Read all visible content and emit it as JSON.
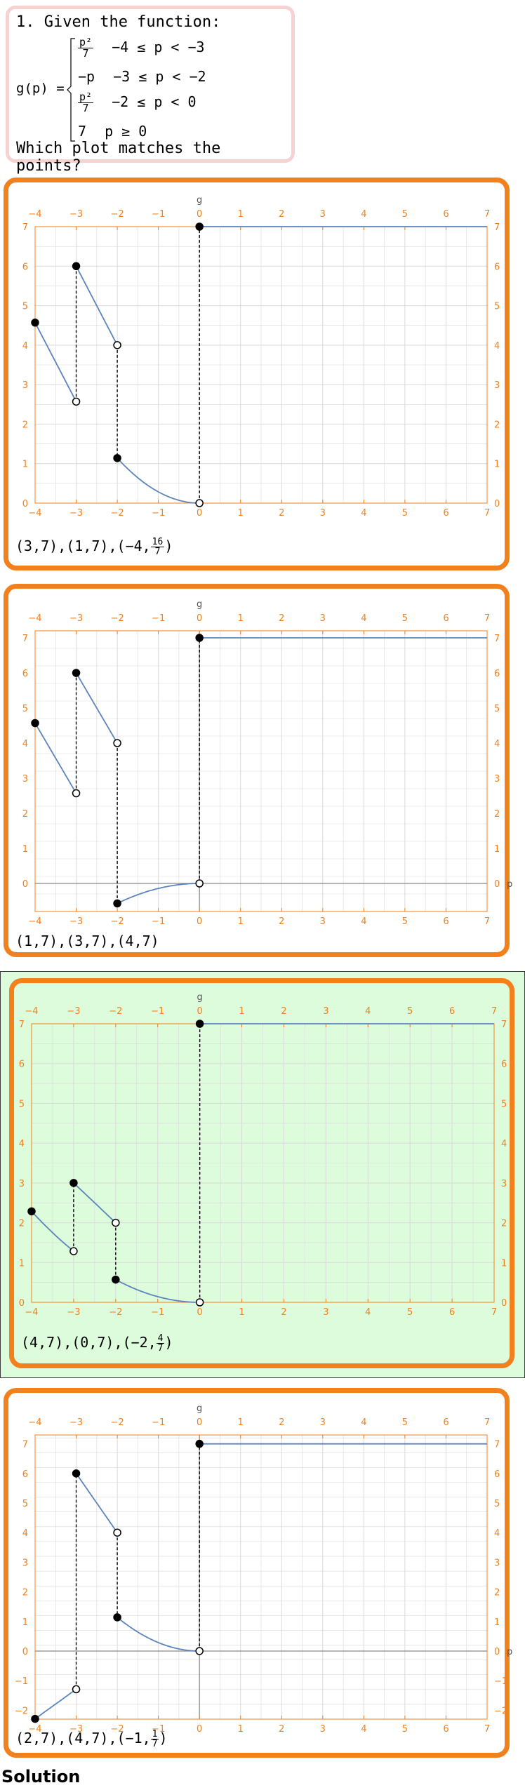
{
  "question": {
    "heading": "1. Given the function:",
    "lhs": "g(p) =",
    "cases": [
      {
        "expr_num": "p²",
        "expr_den": "7",
        "condition": "−4 ≤ p < −3"
      },
      {
        "expr": "−p",
        "condition": "−3 ≤ p < −2"
      },
      {
        "expr_num": "p²",
        "expr_den": "7",
        "condition": "−2 ≤ p < 0"
      },
      {
        "expr": "7",
        "condition": "p ≥ 0"
      }
    ],
    "prompt": "Which plot matches the points?"
  },
  "colors": {
    "accent": "#f2801d",
    "selected_bg": "#dcfcdc",
    "question_border": "#f6d2d2",
    "curve": "#5b84bb",
    "grid": "#d9d9d9"
  },
  "options": [
    {
      "points_text": "(3,7),(1,7),(−4,",
      "frac_num": "16",
      "frac_den": "7",
      "suffix": ")",
      "selected": false
    },
    {
      "points_text": "(1,7),(3,7),(4,7)",
      "selected": false
    },
    {
      "points_text": "(4,7),(0,7),(−2,",
      "frac_num": "4",
      "frac_den": "7",
      "suffix": ")",
      "selected": true
    },
    {
      "points_text": "(2,7),(4,7),(−1,",
      "frac_num": "1",
      "frac_den": "7",
      "suffix": ")",
      "selected": false
    }
  ],
  "chart_data": [
    {
      "type": "line",
      "axis_label_top": "g",
      "axis_label_right": "",
      "xlim": [
        -4,
        7
      ],
      "ylim": [
        0,
        7
      ],
      "xticks": [
        -4,
        -3,
        -2,
        -1,
        0,
        1,
        2,
        3,
        4,
        5,
        6,
        7
      ],
      "yticks": [
        0,
        1,
        2,
        3,
        4,
        5,
        6,
        7
      ],
      "grid": true,
      "zero_axis": false,
      "pieces": [
        {
          "fn": "p2/7",
          "from": -4,
          "to": -3
        },
        {
          "fn": "-p",
          "from": -3,
          "to": -2
        },
        {
          "fn": "p2/7",
          "from": -2,
          "to": 0
        },
        {
          "fn": "7",
          "from": 0,
          "to": 7
        }
      ],
      "points": [
        {
          "x": -4,
          "y": 2.2857,
          "filled": true
        },
        {
          "x": -3,
          "y": 1.2857,
          "filled": false
        },
        {
          "x": -3,
          "y": 3,
          "filled": true
        },
        {
          "x": -2,
          "y": 2,
          "filled": false
        },
        {
          "x": -2,
          "y": 0.5714,
          "filled": true
        },
        {
          "x": 0,
          "y": 0,
          "filled": false
        },
        {
          "x": 0,
          "y": 7,
          "filled": true
        }
      ],
      "dashes": [
        [
          -3,
          1.2857,
          3
        ],
        [
          -2,
          2,
          0.5714
        ],
        [
          0,
          0,
          7
        ]
      ]
    }
  ]
}
